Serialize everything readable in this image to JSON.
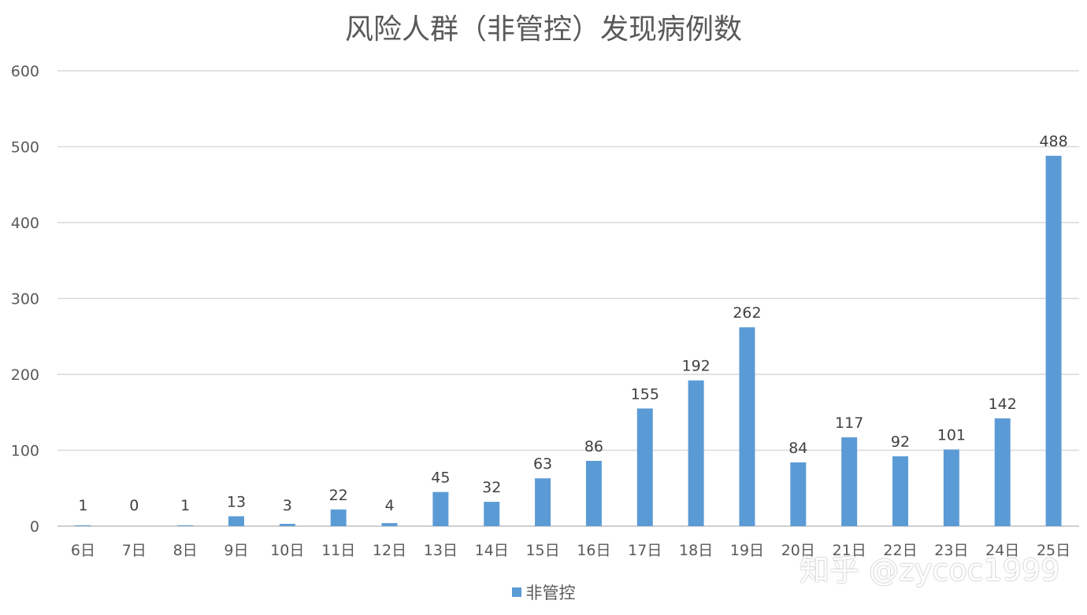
{
  "chart_data": {
    "type": "bar",
    "title": "风险人群（非管控）发现病例数",
    "categories": [
      "6日",
      "7日",
      "8日",
      "9日",
      "10日",
      "11日",
      "12日",
      "13日",
      "14日",
      "15日",
      "16日",
      "17日",
      "18日",
      "19日",
      "20日",
      "21日",
      "22日",
      "23日",
      "24日",
      "25日"
    ],
    "series": [
      {
        "name": "非管控",
        "color": "#5b9bd5",
        "values": [
          1,
          0,
          1,
          13,
          3,
          22,
          4,
          45,
          32,
          63,
          86,
          155,
          192,
          262,
          84,
          117,
          92,
          101,
          142,
          488
        ]
      }
    ],
    "ylim": [
      0,
      600
    ],
    "yticks": [
      0,
      100,
      200,
      300,
      400,
      500,
      600
    ],
    "grid": true,
    "legend_position": "bottom",
    "data_labels": true
  },
  "watermark": "知乎 @zycoc1999"
}
